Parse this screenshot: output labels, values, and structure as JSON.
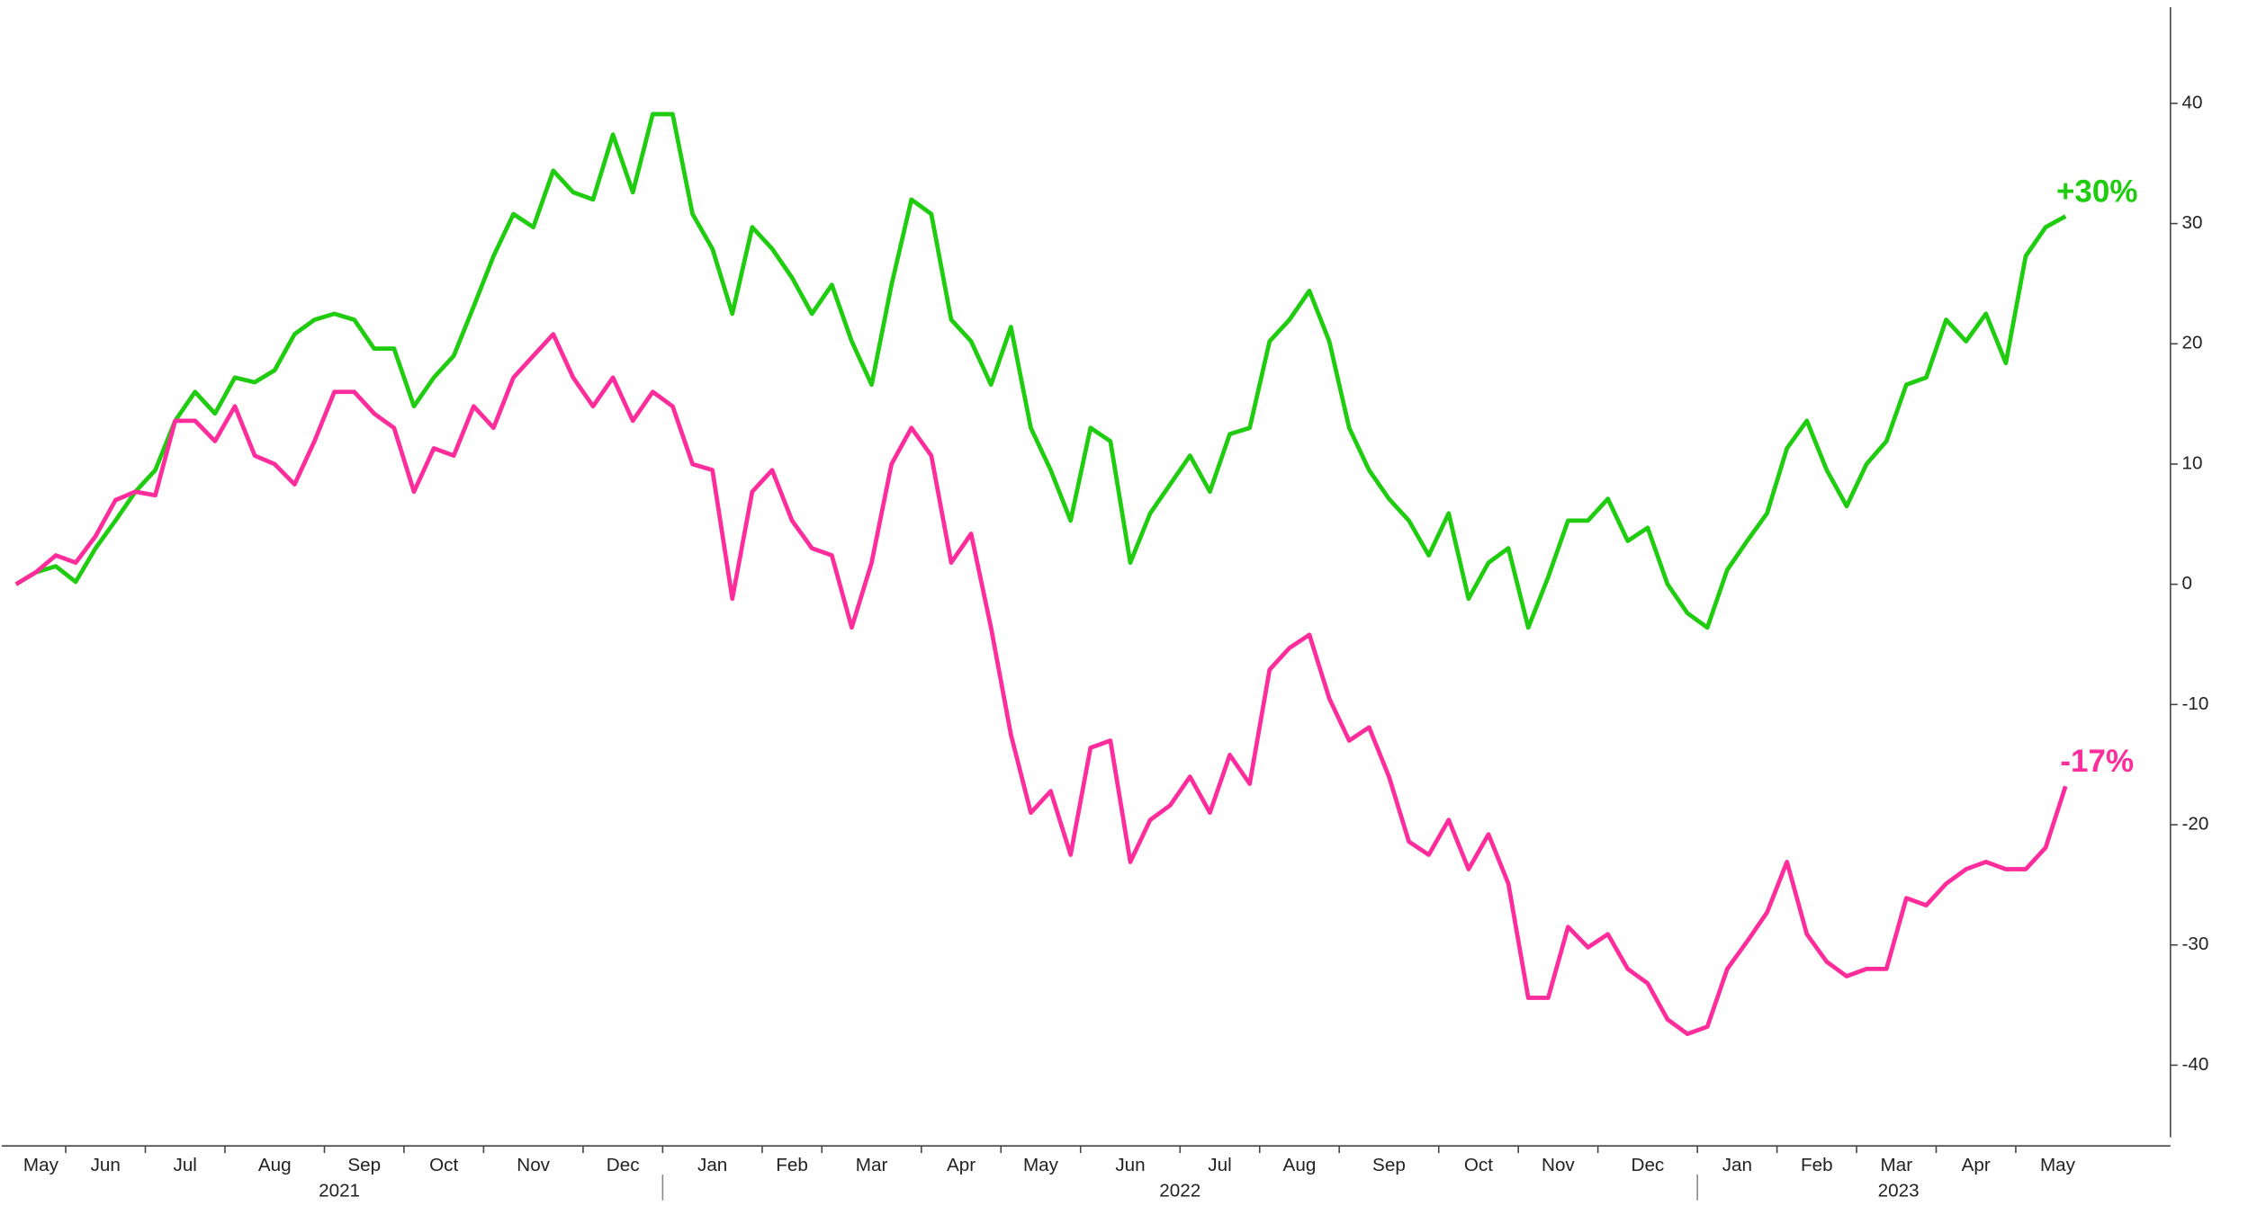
{
  "chart_data": {
    "type": "line",
    "categories": [
      "May",
      null,
      null,
      "Jun",
      null,
      null,
      null,
      "Jul",
      null,
      null,
      null,
      "Aug",
      null,
      null,
      null,
      null,
      "Sep",
      null,
      null,
      null,
      "Oct",
      null,
      null,
      null,
      "Nov",
      null,
      null,
      null,
      null,
      "Dec",
      null,
      null,
      null,
      "Jan",
      null,
      null,
      null,
      null,
      "Feb",
      null,
      null,
      "Mar",
      null,
      null,
      null,
      null,
      "Apr",
      null,
      null,
      null,
      "May",
      null,
      null,
      null,
      "Jun",
      null,
      null,
      null,
      null,
      "Jul",
      null,
      null,
      null,
      "Aug",
      null,
      null,
      null,
      "Sep",
      null,
      null,
      null,
      null,
      "Oct",
      null,
      null,
      null,
      "Nov",
      null,
      null,
      null,
      "Dec",
      null,
      null,
      null,
      null,
      "Jan",
      null,
      null,
      null,
      "Feb",
      null,
      null,
      null,
      "Mar",
      null,
      null,
      null,
      "Apr",
      null,
      null,
      null,
      "May",
      null,
      null
    ],
    "x_groups": [
      {
        "label": "2021",
        "span": 8
      },
      {
        "label": "2022",
        "span": 12
      },
      {
        "label": "2023",
        "span": 5
      }
    ],
    "series": [
      {
        "name": null,
        "color": "#1fcc0f",
        "end_label": "+30%",
        "values": [
          0,
          1,
          1.5,
          0.2,
          3,
          5.3,
          7.7,
          9.5,
          13.6,
          16,
          14.2,
          17.2,
          16.8,
          17.8,
          20.8,
          22,
          22.5,
          22,
          19.6,
          19.6,
          14.8,
          17.2,
          19,
          23.1,
          27.3,
          30.8,
          29.7,
          34.4,
          32.6,
          32,
          37.4,
          32.6,
          39.1,
          39.1,
          30.8,
          27.9,
          22.5,
          29.7,
          27.9,
          25.5,
          22.5,
          24.9,
          20.2,
          16.6,
          24.9,
          32,
          30.8,
          22,
          20.2,
          16.6,
          21.4,
          13,
          9.5,
          5.3,
          13,
          11.9,
          1.8,
          5.9,
          8.3,
          10.7,
          7.7,
          12.5,
          13,
          20.2,
          22,
          24.4,
          20.2,
          13,
          9.5,
          7.1,
          5.3,
          2.4,
          5.9,
          -1.2,
          1.8,
          3,
          -3.6,
          0.6,
          5.3,
          5.3,
          7.1,
          3.6,
          4.7,
          0,
          -2.4,
          -3.6,
          1.2,
          3.6,
          5.9,
          11.3,
          13.6,
          9.5,
          6.5,
          10,
          11.9,
          16.6,
          17.2,
          22,
          20.2,
          22.5,
          18.4,
          27.3,
          29.7,
          30.6
        ]
      },
      {
        "name": null,
        "color": "#ff2d9b",
        "end_label": "-17%",
        "values": [
          0,
          1,
          2.4,
          1.8,
          4,
          7,
          7.7,
          7.4,
          13.6,
          13.6,
          11.9,
          14.8,
          10.7,
          10,
          8.3,
          11.9,
          16,
          16,
          14.2,
          13,
          7.7,
          11.3,
          10.7,
          14.8,
          13,
          17.2,
          19,
          20.8,
          17.2,
          14.8,
          17.2,
          13.6,
          16,
          14.8,
          10,
          9.5,
          -1.2,
          7.7,
          9.5,
          5.3,
          3,
          2.4,
          -3.6,
          1.8,
          10,
          13,
          10.7,
          1.8,
          4.2,
          -3.6,
          -12.5,
          -19,
          -17.2,
          -22.5,
          -13.6,
          -13,
          -23.1,
          -19.6,
          -18.4,
          -16,
          -19,
          -14.2,
          -16.6,
          -7.1,
          -5.3,
          -4.2,
          -9.5,
          -13,
          -11.9,
          -16,
          -21.4,
          -22.5,
          -19.6,
          -23.7,
          -20.8,
          -24.9,
          -34.4,
          -34.4,
          -28.5,
          -30.2,
          -29.1,
          -32,
          -33.2,
          -36.2,
          -37.4,
          -36.8,
          -32,
          -29.7,
          -27.3,
          -23.1,
          -29.1,
          -31.4,
          -32.6,
          -32,
          -32,
          -26.1,
          -26.7,
          -24.9,
          -23.7,
          -23.1,
          -23.7,
          -23.7,
          -21.9,
          -16.8
        ]
      }
    ],
    "ylim": [
      -46,
      48
    ],
    "yticks": [
      -40,
      -30,
      -20,
      -10,
      0,
      10,
      20,
      30,
      40
    ],
    "y_axis_side": "right",
    "grid": false
  }
}
